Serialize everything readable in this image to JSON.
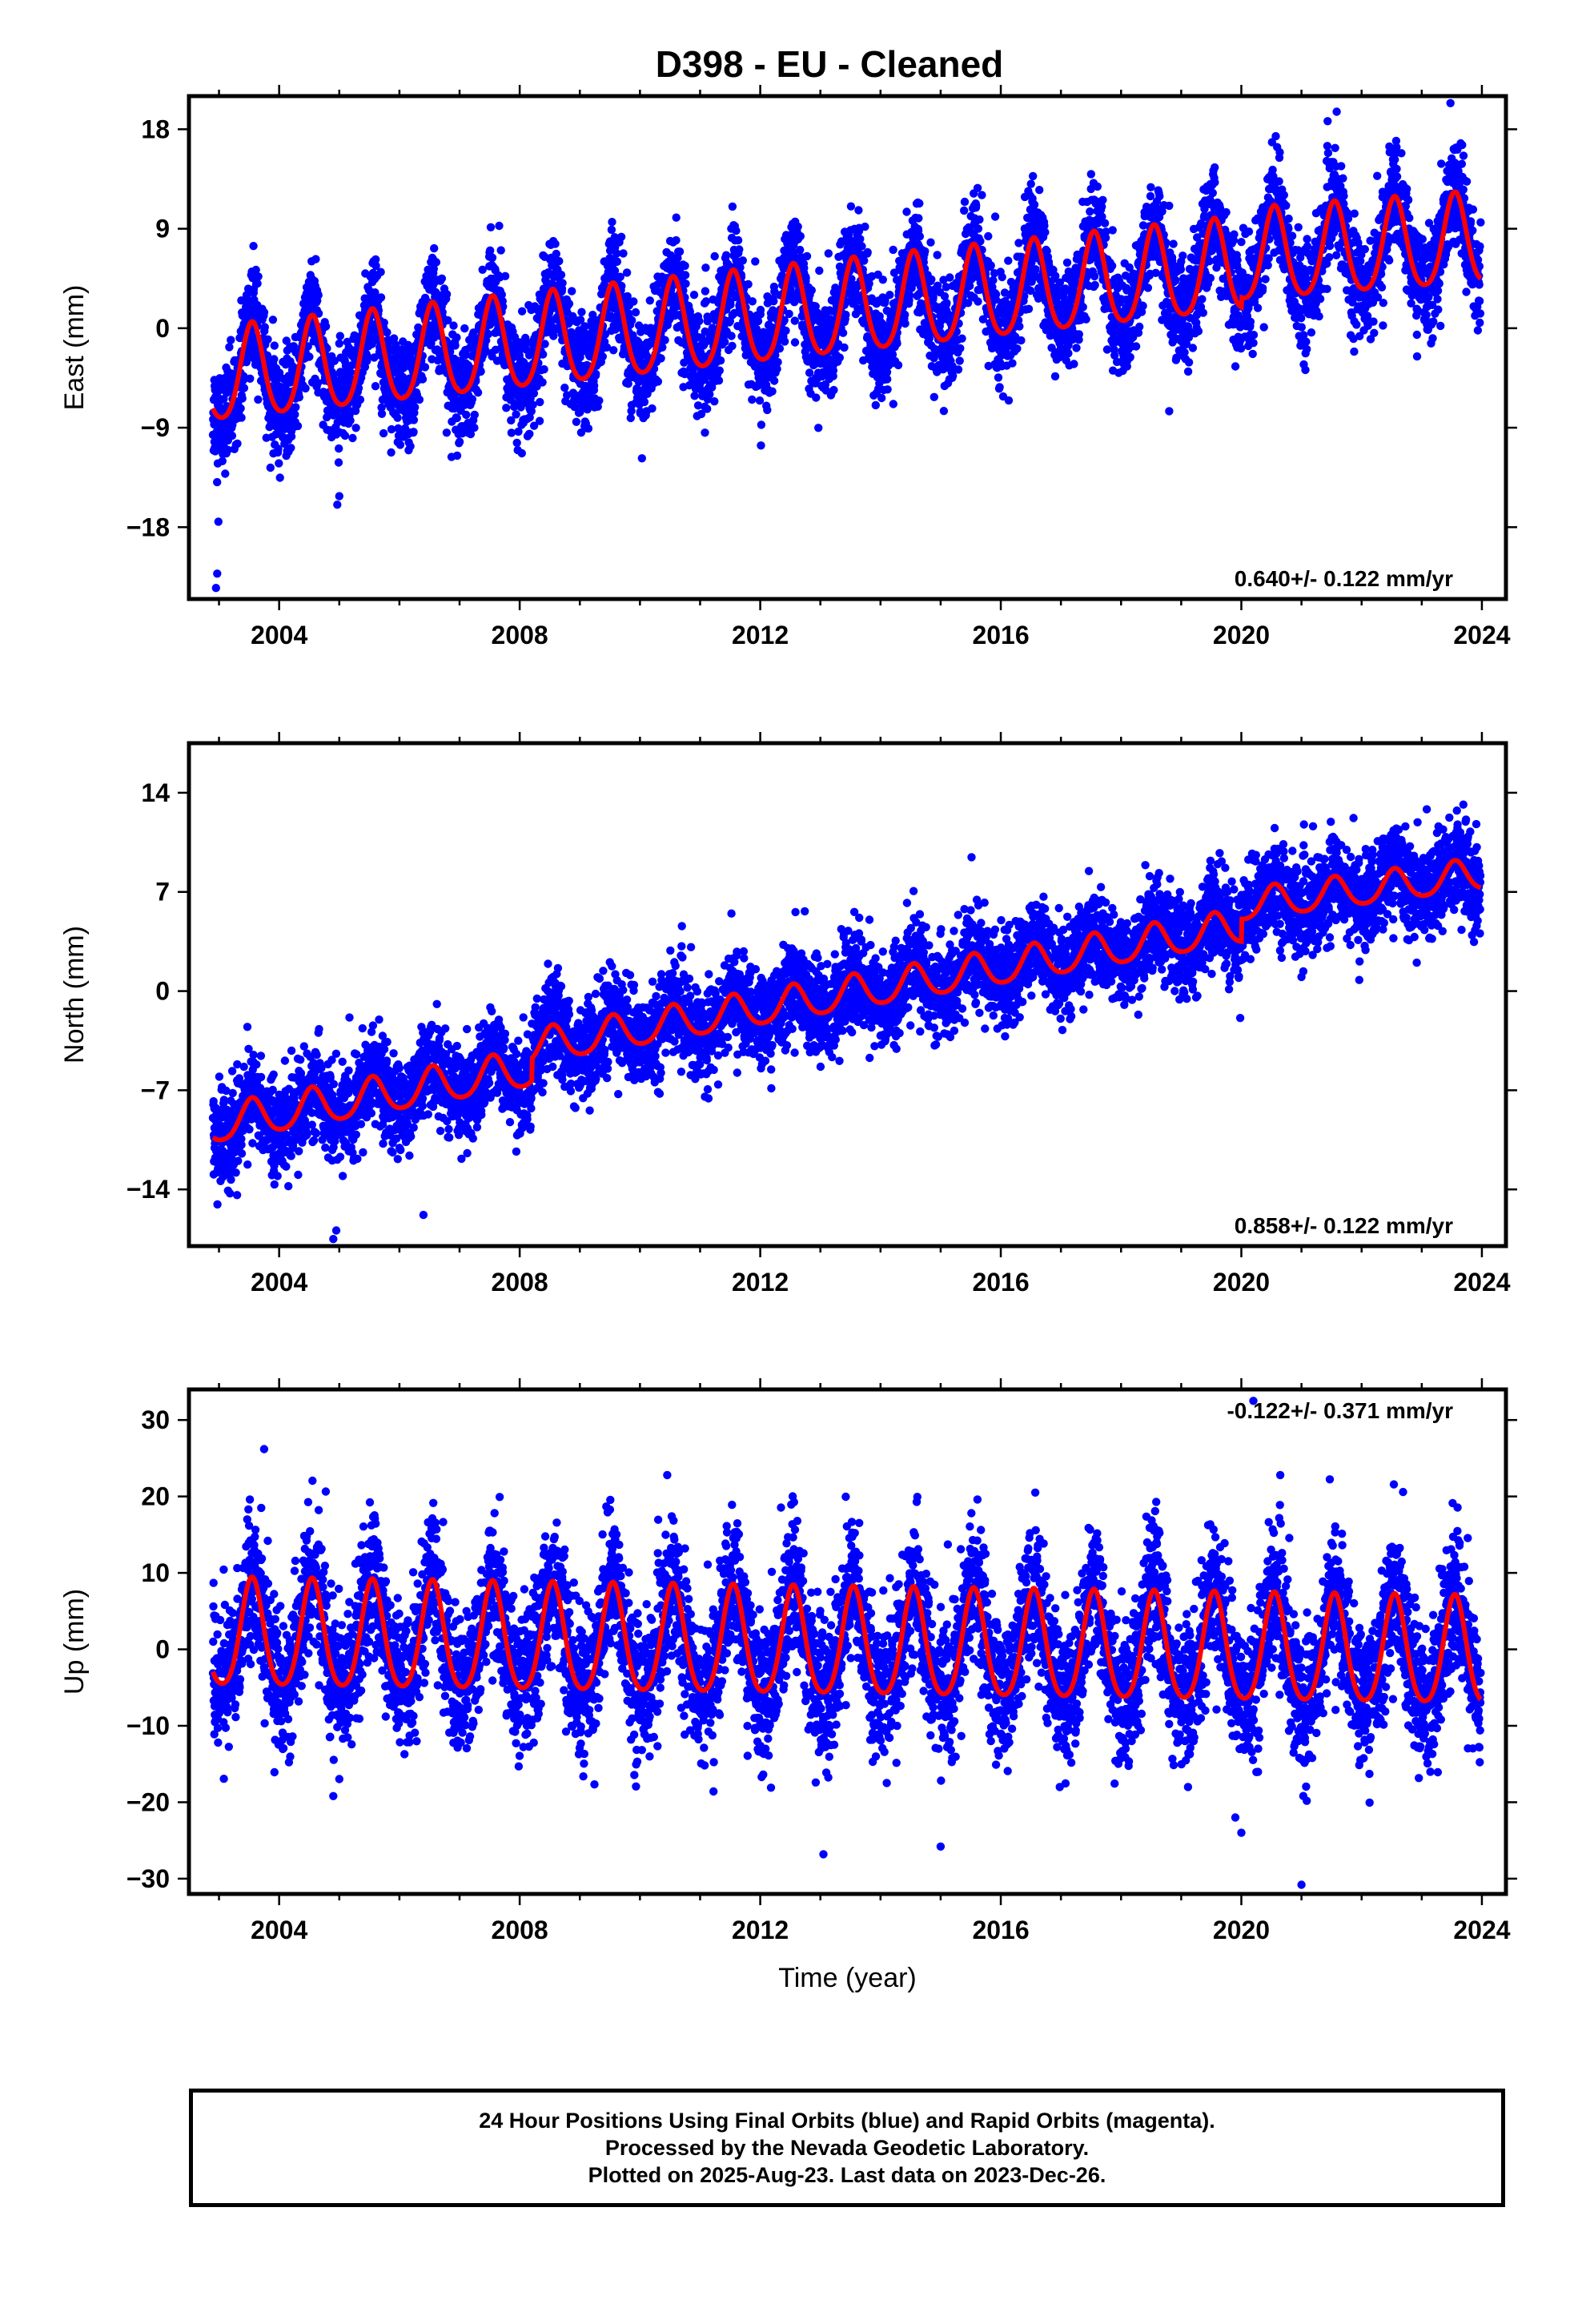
{
  "title": "D398  - EU - Cleaned",
  "caption": [
    "24 Hour Positions Using Final Orbits (blue) and Rapid Orbits (magenta).",
    "Processed by the Nevada Geodetic Laboratory.",
    "Plotted on 2025-Aug-23. Last data on 2023-Dec-26."
  ],
  "colors": {
    "final_orbits": "#0000ff",
    "model": "#ff0000",
    "frame": "#000000"
  },
  "chart_data": [
    {
      "type": "scatter",
      "component": "East",
      "ylabel": "East (mm)",
      "xlabel": "",
      "xlim": [
        2002.5,
        2024.4
      ],
      "ylim": [
        -24.5,
        21
      ],
      "xticks": [
        2004,
        2008,
        2012,
        2016,
        2020,
        2024
      ],
      "yticks": [
        -18,
        -9,
        0,
        9,
        18
      ],
      "rate_text": "0.640+/- 0.122 mm/yr",
      "rate_position": "bottom-right",
      "data_start": 2002.9,
      "data_end": 2023.98,
      "model_segments": [
        {
          "from": 2002.9,
          "to": 2020.0,
          "offset_start": -4.6,
          "offset_end": 5.4,
          "amplitude": 4.2
        },
        {
          "from": 2020.0,
          "to": 2023.98,
          "offset_start": 6.2,
          "offset_end": 7.8,
          "amplitude": 4.1
        }
      ],
      "observation_scatter": 2.3,
      "outliers": [
        [
          2002.95,
          -23.5
        ],
        [
          2002.97,
          -22.2
        ],
        [
          2002.99,
          -17.5
        ],
        [
          2005.0,
          -15.2
        ],
        [
          2017.5,
          12.6
        ],
        [
          2021.0,
          -1.2
        ],
        [
          2018.8,
          -7.5
        ]
      ]
    },
    {
      "type": "scatter",
      "component": "North",
      "ylabel": "North (mm)",
      "xlabel": "",
      "xlim": [
        2002.5,
        2024.4
      ],
      "ylim": [
        -18,
        17.5
      ],
      "xticks": [
        2004,
        2008,
        2012,
        2016,
        2020,
        2024
      ],
      "yticks": [
        -14,
        -7,
        0,
        7,
        14
      ],
      "rate_text": "0.858+/- 0.122 mm/yr",
      "rate_position": "bottom-right",
      "data_start": 2002.9,
      "data_end": 2023.98,
      "model_segments": [
        {
          "from": 2002.9,
          "to": 2008.2,
          "offset_start": -9.5,
          "offset_end": -5.5,
          "amplitude": 1.3
        },
        {
          "from": 2008.2,
          "to": 2020.0,
          "offset_start": -4.0,
          "offset_end": 4.5,
          "amplitude": 1.2
        },
        {
          "from": 2020.0,
          "to": 2023.98,
          "offset_start": 6.0,
          "offset_end": 8.2,
          "amplitude": 1.1
        }
      ],
      "observation_scatter": 1.6,
      "outliers": [
        [
          2004.9,
          -17.5
        ],
        [
          2004.95,
          -16.9
        ],
        [
          2006.4,
          -15.8
        ],
        [
          2003.3,
          -14.4
        ],
        [
          2021.0,
          1.0
        ],
        [
          2011.3,
          -6.6
        ]
      ]
    },
    {
      "type": "scatter",
      "component": "Up",
      "ylabel": "Up (mm)",
      "xlabel": "Time (year)",
      "xlim": [
        2002.5,
        2024.4
      ],
      "ylim": [
        -32,
        34
      ],
      "xticks": [
        2004,
        2008,
        2012,
        2016,
        2020,
        2024
      ],
      "yticks": [
        -30,
        -20,
        -10,
        0,
        10,
        20,
        30
      ],
      "rate_text": "-0.122+/- 0.371 mm/yr",
      "rate_position": "top-right",
      "data_start": 2002.9,
      "data_end": 2023.98,
      "model_segments": [
        {
          "from": 2002.9,
          "to": 2023.98,
          "offset_start": 1.5,
          "offset_end": -0.9,
          "amplitude": 7.0
        }
      ],
      "observation_scatter": 4.5,
      "outliers": [
        [
          2003.75,
          26.2
        ],
        [
          2013.05,
          -26.8
        ],
        [
          2015.0,
          -25.8
        ],
        [
          2020.0,
          -24.0
        ],
        [
          2021.0,
          -30.8
        ],
        [
          2020.2,
          32.5
        ],
        [
          2004.9,
          -19.2
        ],
        [
          2019.9,
          -22.0
        ]
      ]
    }
  ]
}
